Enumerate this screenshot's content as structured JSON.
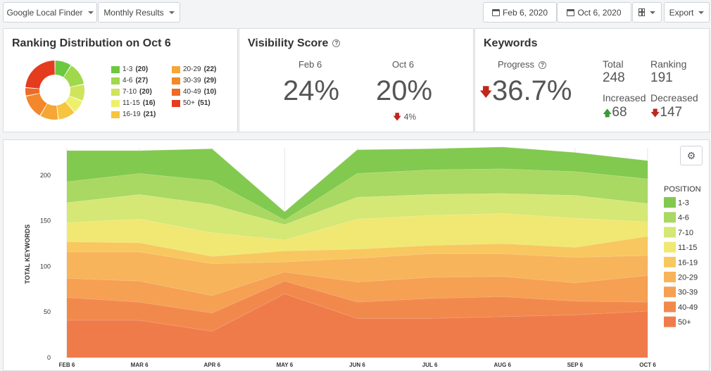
{
  "toolbar": {
    "finder_label": "Google Local Finder",
    "period_label": "Monthly Results",
    "date_from": "Feb 6, 2020",
    "date_to": "Oct 6, 2020",
    "columns_icon": "columns-icon",
    "export_label": "Export"
  },
  "ranking": {
    "title": "Ranking Distribution on Oct 6",
    "items": [
      {
        "label": "1-3",
        "value": "(20)",
        "color": "#6cc83f"
      },
      {
        "label": "4-6",
        "value": "(27)",
        "color": "#9fd84b"
      },
      {
        "label": "7-10",
        "value": "(20)",
        "color": "#cfe45b"
      },
      {
        "label": "11-15",
        "value": "(16)",
        "color": "#eef06c"
      },
      {
        "label": "16-19",
        "value": "(21)",
        "color": "#f6c43f"
      },
      {
        "label": "20-29",
        "value": "(22)",
        "color": "#f5a634"
      },
      {
        "label": "30-39",
        "value": "(29)",
        "color": "#f3872c"
      },
      {
        "label": "40-49",
        "value": "(10)",
        "color": "#ee6a26"
      },
      {
        "label": "50+",
        "value": "(51)",
        "color": "#e53b1e"
      }
    ]
  },
  "visibility": {
    "title": "Visibility Score",
    "from_label": "Feb 6",
    "from_value": "24%",
    "to_label": "Oct 6",
    "to_value": "20%",
    "change": "4%"
  },
  "keywords": {
    "title": "Keywords",
    "progress_label": "Progress",
    "progress_value": "36.7%",
    "total_label": "Total",
    "total_value": "248",
    "ranking_label": "Ranking",
    "ranking_value": "191",
    "increased_label": "Increased",
    "increased_value": "68",
    "decreased_label": "Decreased",
    "decreased_value": "147"
  },
  "chart_data": {
    "type": "area",
    "ylabel": "TOTAL KEYWORDS",
    "ylim": [
      0,
      230
    ],
    "yticks": [
      0,
      50,
      100,
      150,
      200
    ],
    "categories": [
      "FEB 6",
      "MAR 6",
      "APR 6",
      "MAY 6",
      "JUN 6",
      "JUL 6",
      "AUG 6",
      "SEP 6",
      "OCT 6"
    ],
    "legend_title": "POSITION",
    "legend_position": "right",
    "series": [
      {
        "name": "50+",
        "color": "#ef7b4b",
        "values": [
          41,
          41,
          29,
          70,
          43,
          43,
          45,
          47,
          51
        ]
      },
      {
        "name": "40-49",
        "color": "#f2894c",
        "values": [
          25,
          20,
          20,
          14,
          18,
          22,
          22,
          15,
          10
        ]
      },
      {
        "name": "30-39",
        "color": "#f5a053",
        "values": [
          21,
          23,
          19,
          10,
          22,
          23,
          22,
          20,
          29
        ]
      },
      {
        "name": "20-29",
        "color": "#f7b45a",
        "values": [
          29,
          32,
          35,
          11,
          26,
          26,
          25,
          28,
          22
        ]
      },
      {
        "name": "16-19",
        "color": "#f8c760",
        "values": [
          11,
          10,
          8,
          12,
          10,
          9,
          11,
          11,
          21
        ]
      },
      {
        "name": "11-15",
        "color": "#f0e872",
        "values": [
          21,
          26,
          26,
          12,
          33,
          33,
          33,
          32,
          16
        ]
      },
      {
        "name": "7-10",
        "color": "#d5e775",
        "values": [
          22,
          27,
          31,
          17,
          24,
          23,
          22,
          25,
          20
        ]
      },
      {
        "name": "4-6",
        "color": "#a9d863",
        "values": [
          23,
          23,
          26,
          5,
          26,
          27,
          27,
          26,
          27
        ]
      },
      {
        "name": "1-3",
        "color": "#82c94f",
        "values": [
          34,
          25,
          35,
          9,
          26,
          23,
          24,
          21,
          20
        ]
      }
    ],
    "settings_icon": "gear-icon"
  }
}
